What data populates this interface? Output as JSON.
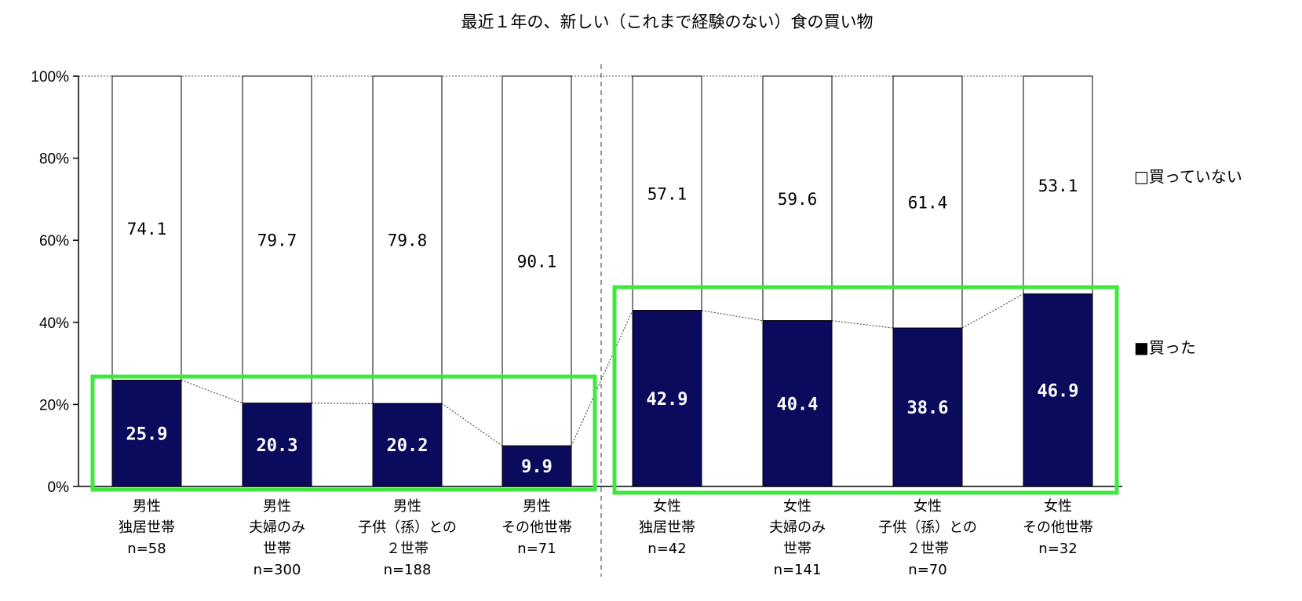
{
  "chart_data": {
    "type": "bar",
    "stacked": true,
    "percent": true,
    "title": "最近１年の、新しい（これまで経験のない）食の買い物",
    "ylim": [
      0,
      100
    ],
    "yticks": [
      "0%",
      "20%",
      "40%",
      "60%",
      "80%",
      "100%"
    ],
    "categories": [
      [
        "男性",
        "独居世帯",
        "n=58"
      ],
      [
        "男性",
        "夫婦のみ",
        "世帯",
        "n=300"
      ],
      [
        "男性",
        "子供（孫）との",
        "２世帯",
        "n=188"
      ],
      [
        "男性",
        "その他世帯",
        "n=71"
      ],
      [
        "女性",
        "独居世帯",
        "n=42"
      ],
      [
        "女性",
        "夫婦のみ",
        "世帯",
        "n=141"
      ],
      [
        "女性",
        "子供（孫）との",
        "２世帯",
        "n=70"
      ],
      [
        "女性",
        "その他世帯",
        "n=32"
      ]
    ],
    "series": [
      {
        "name": "買った",
        "color": "#0b0b5e",
        "values": [
          25.9,
          20.3,
          20.2,
          9.9,
          42.9,
          40.4,
          38.6,
          46.9
        ],
        "labels": [
          "25.9",
          "20.3",
          "20.2",
          "9.9",
          "42.9",
          "40.4",
          "38.6",
          "46.9"
        ]
      },
      {
        "name": "買っていない",
        "color": "#ffffff",
        "values": [
          74.1,
          79.7,
          79.8,
          90.1,
          57.1,
          59.6,
          61.4,
          53.1
        ],
        "labels": [
          "74.1",
          "79.7",
          "79.8",
          "90.1",
          "57.1",
          "59.6",
          "61.4",
          "53.1"
        ]
      }
    ],
    "legend": {
      "position": "right",
      "items": [
        "□買っていない",
        "■買った"
      ]
    },
    "highlight_color": "#3ee83e"
  }
}
